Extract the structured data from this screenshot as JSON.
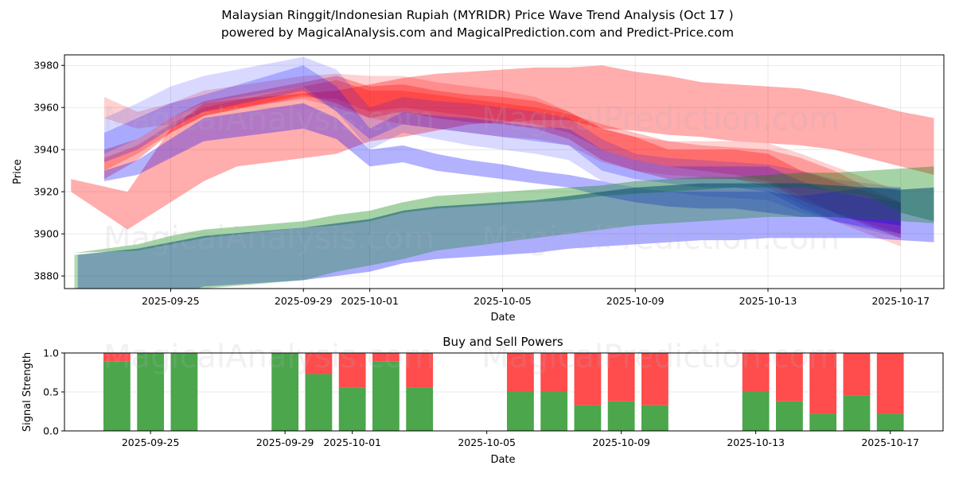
{
  "header": {
    "title": "Malaysian Ringgit/Indonesian Rupiah (MYRIDR) Price Wave Trend Analysis (Oct 17 )",
    "subtitle": "powered by MagicalAnalysis.com and MagicalPrediction.com and Predict-Price.com"
  },
  "watermarks": [
    "MagicalAnalysis.com",
    "MagicalPrediction.com"
  ],
  "colors": {
    "red_band": "#ff0000",
    "blue_band": "#0000ff",
    "green_band": "#008000",
    "buy": "#4ca64c",
    "sell": "#ff4c4c"
  },
  "chart_data": [
    {
      "type": "area",
      "title": "",
      "xlabel": "Date",
      "ylabel": "Price",
      "ylim": [
        3874,
        3985
      ],
      "yticks": [
        3880,
        3900,
        3920,
        3940,
        3960,
        3980
      ],
      "xticks": [
        "2025-09-25",
        "2025-09-29",
        "2025-10-01",
        "2025-10-05",
        "2025-10-09",
        "2025-10-13",
        "2025-10-17"
      ],
      "x_unit": "days since 2025-09-25",
      "xlim": [
        -3.2,
        23.3
      ],
      "grid": true,
      "bands": [
        {
          "name": "red-wide",
          "color": "red",
          "alpha": 0.32,
          "x": [
            -3.0,
            -1.3,
            0,
            1,
            2,
            5,
            6,
            7,
            8,
            9,
            10,
            11,
            12,
            13,
            14,
            15,
            16,
            17,
            18,
            19,
            20,
            21,
            22,
            23
          ],
          "upper": [
            3926,
            3920,
            3950,
            3962,
            3964,
            3968,
            3971,
            3974,
            3976,
            3977,
            3978,
            3979,
            3979,
            3980,
            3977,
            3975,
            3972,
            3971,
            3970,
            3969,
            3966,
            3962,
            3958,
            3955
          ],
          "lower": [
            3920,
            3902,
            3915,
            3925,
            3932,
            3938,
            3944,
            3946,
            3949,
            3952,
            3953,
            3954,
            3954,
            3950,
            3949,
            3947,
            3946,
            3944,
            3943,
            3942,
            3940,
            3936,
            3932,
            3928
          ]
        },
        {
          "name": "red-1",
          "color": "red",
          "alpha": 0.3,
          "x": [
            -2,
            -1,
            0,
            1,
            4,
            5,
            6,
            7,
            8,
            9,
            10,
            11,
            12,
            13,
            14,
            15,
            16,
            17,
            18,
            19,
            20,
            21,
            22
          ],
          "upper": [
            3940,
            3945,
            3955,
            3963,
            3972,
            3975,
            3970,
            3971,
            3968,
            3966,
            3965,
            3963,
            3958,
            3950,
            3946,
            3940,
            3940,
            3940,
            3938,
            3930,
            3925,
            3920,
            3915
          ],
          "lower": [
            3926,
            3935,
            3948,
            3956,
            3966,
            3962,
            3955,
            3958,
            3955,
            3953,
            3952,
            3950,
            3945,
            3935,
            3930,
            3926,
            3926,
            3926,
            3924,
            3916,
            3910,
            3904,
            3898
          ]
        },
        {
          "name": "red-2",
          "color": "red",
          "alpha": 0.25,
          "x": [
            -2,
            -1,
            0,
            1,
            4,
            5,
            6,
            7,
            8,
            9,
            10,
            11,
            12,
            13,
            14,
            15,
            16,
            17,
            18,
            19,
            20,
            21,
            22
          ],
          "upper": [
            3936,
            3942,
            3952,
            3960,
            3970,
            3973,
            3968,
            3968,
            3966,
            3964,
            3962,
            3960,
            3957,
            3952,
            3948,
            3944,
            3942,
            3941,
            3940,
            3936,
            3930,
            3922,
            3915
          ],
          "lower": [
            3930,
            3938,
            3948,
            3956,
            3965,
            3964,
            3958,
            3960,
            3958,
            3956,
            3954,
            3952,
            3948,
            3940,
            3935,
            3932,
            3930,
            3928,
            3925,
            3918,
            3910,
            3905,
            3900
          ]
        },
        {
          "name": "red-3",
          "color": "red",
          "alpha": 0.18,
          "x": [
            -2,
            -1,
            0,
            1,
            4,
            5,
            6,
            7,
            8,
            9,
            10,
            11,
            12,
            13,
            14,
            15,
            16,
            17,
            18,
            19,
            20,
            21,
            22
          ],
          "upper": [
            3965,
            3958,
            3962,
            3968,
            3975,
            3976,
            3975,
            3975,
            3972,
            3970,
            3968,
            3965,
            3958,
            3950,
            3946,
            3944,
            3944,
            3944,
            3943,
            3938,
            3932,
            3926,
            3920
          ],
          "lower": [
            3955,
            3950,
            3952,
            3958,
            3964,
            3960,
            3955,
            3952,
            3950,
            3948,
            3946,
            3945,
            3942,
            3934,
            3930,
            3928,
            3927,
            3926,
            3922,
            3914,
            3906,
            3900,
            3894
          ]
        },
        {
          "name": "blue-1",
          "color": "blue",
          "alpha": 0.15,
          "x": [
            -2,
            -1,
            0,
            1,
            4,
            5,
            6,
            7,
            8,
            9,
            10,
            11,
            12,
            13,
            14,
            15,
            16,
            17,
            18,
            19,
            20,
            21,
            22
          ],
          "upper": [
            3955,
            3962,
            3970,
            3975,
            3984,
            3978,
            3960,
            3965,
            3963,
            3962,
            3960,
            3958,
            3955,
            3945,
            3938,
            3936,
            3935,
            3934,
            3933,
            3930,
            3926,
            3924,
            3922
          ],
          "lower": [
            3938,
            3945,
            3955,
            3962,
            3970,
            3958,
            3940,
            3948,
            3945,
            3942,
            3940,
            3938,
            3935,
            3925,
            3922,
            3920,
            3918,
            3917,
            3916,
            3910,
            3906,
            3902,
            3898
          ]
        },
        {
          "name": "blue-2",
          "color": "blue",
          "alpha": 0.22,
          "x": [
            -2,
            -1,
            0,
            1,
            4,
            5,
            6,
            7,
            8,
            9,
            10,
            11,
            12,
            13,
            14,
            15,
            16,
            17,
            18,
            19,
            20,
            21,
            22
          ],
          "upper": [
            3948,
            3955,
            3962,
            3966,
            3980,
            3970,
            3950,
            3958,
            3956,
            3955,
            3953,
            3951,
            3950,
            3940,
            3935,
            3932,
            3932,
            3932,
            3932,
            3925,
            3920,
            3917,
            3915
          ],
          "lower": [
            3934,
            3940,
            3950,
            3958,
            3968,
            3958,
            3945,
            3952,
            3950,
            3948,
            3946,
            3944,
            3942,
            3930,
            3926,
            3924,
            3922,
            3922,
            3920,
            3912,
            3906,
            3903,
            3900
          ]
        },
        {
          "name": "blue-3",
          "color": "blue",
          "alpha": 0.3,
          "x": [
            -2,
            -1,
            0,
            1,
            4,
            5,
            6,
            7,
            8,
            9,
            10,
            11,
            12,
            13,
            14,
            15,
            16,
            17,
            18,
            19,
            20,
            21,
            22
          ],
          "upper": [
            3930,
            3935,
            3945,
            3955,
            3962,
            3955,
            3940,
            3942,
            3938,
            3935,
            3933,
            3930,
            3928,
            3925,
            3922,
            3920,
            3920,
            3920,
            3920,
            3918,
            3920,
            3922,
            3922
          ],
          "lower": [
            3925,
            3928,
            3936,
            3944,
            3950,
            3945,
            3932,
            3934,
            3930,
            3928,
            3926,
            3924,
            3922,
            3918,
            3915,
            3913,
            3912,
            3912,
            3910,
            3908,
            3908,
            3906,
            3904
          ]
        },
        {
          "name": "green-upper",
          "color": "green",
          "alpha": 0.35,
          "x": [
            -2.9,
            -1,
            0,
            1,
            4,
            5,
            6,
            7,
            8,
            9,
            10,
            11,
            12,
            13,
            14,
            15,
            16,
            17,
            18,
            19,
            20,
            21,
            22,
            23
          ],
          "upper": [
            3891,
            3895,
            3899,
            3902,
            3906,
            3909,
            3911,
            3915,
            3918,
            3919,
            3920,
            3921,
            3922,
            3923,
            3925,
            3926,
            3927,
            3927,
            3928,
            3929,
            3929,
            3930,
            3931,
            3932
          ],
          "lower": [
            3891,
            3892,
            3895,
            3898,
            3903,
            3904,
            3906,
            3910,
            3912,
            3913,
            3914,
            3915,
            3916,
            3918,
            3919,
            3920,
            3921,
            3922,
            3922,
            3922,
            3920,
            3918,
            3910,
            3906
          ]
        },
        {
          "name": "blue-lower",
          "color": "blue",
          "alpha": 0.32,
          "x": [
            -2.8,
            -1,
            0,
            1,
            4,
            5,
            6,
            7,
            8,
            9,
            10,
            11,
            12,
            13,
            14,
            15,
            16,
            17,
            18,
            19,
            20,
            21,
            22,
            23
          ],
          "upper": [
            3890,
            3893,
            3896,
            3899,
            3903,
            3905,
            3907,
            3911,
            3913,
            3914,
            3915,
            3916,
            3918,
            3920,
            3922,
            3923,
            3924,
            3924,
            3924,
            3924,
            3923,
            3922,
            3921,
            3922
          ],
          "lower": [
            3870,
            3868,
            3870,
            3875,
            3878,
            3880,
            3882,
            3886,
            3888,
            3889,
            3890,
            3891,
            3893,
            3894,
            3895,
            3896,
            3897,
            3897,
            3898,
            3898,
            3898,
            3898,
            3897,
            3896
          ]
        },
        {
          "name": "teal-core",
          "color": "green",
          "alpha": 0.3,
          "x": [
            -2.9,
            -1,
            0,
            1,
            4,
            5,
            6,
            7,
            8,
            9,
            10,
            11,
            12,
            13,
            14,
            15,
            16,
            17,
            18,
            19,
            20,
            21,
            22,
            23
          ],
          "upper": [
            3890,
            3893,
            3896,
            3899,
            3903,
            3905,
            3907,
            3911,
            3913,
            3914,
            3915,
            3916,
            3918,
            3920,
            3922,
            3923,
            3924,
            3924,
            3924,
            3924,
            3923,
            3922,
            3921,
            3922
          ],
          "lower": [
            3872,
            3868,
            3870,
            3874,
            3878,
            3882,
            3885,
            3888,
            3892,
            3894,
            3896,
            3898,
            3900,
            3902,
            3904,
            3905,
            3906,
            3907,
            3908,
            3908,
            3908,
            3907,
            3906,
            3905
          ]
        }
      ]
    },
    {
      "type": "bar",
      "title": "Buy and Sell Powers",
      "xlabel": "Date",
      "ylabel": "Signal Strength",
      "ylim": [
        0,
        1
      ],
      "yticks": [
        "0.0",
        "0.5",
        "1.0"
      ],
      "xticks": [
        "2025-09-25",
        "2025-09-29",
        "2025-10-01",
        "2025-10-05",
        "2025-10-09",
        "2025-10-13",
        "2025-10-17"
      ],
      "xlim": [
        -2.56,
        23.57
      ],
      "grid": true,
      "categories": [
        "2025-09-24",
        "2025-09-25",
        "2025-09-26",
        "2025-09-29",
        "2025-09-30",
        "2025-10-01",
        "2025-10-02",
        "2025-10-03",
        "2025-10-06",
        "2025-10-07",
        "2025-10-08",
        "2025-10-09",
        "2025-10-10",
        "2025-10-13",
        "2025-10-14",
        "2025-10-15",
        "2025-10-16",
        "2025-10-17"
      ],
      "day_offsets": [
        -1,
        0,
        1,
        4,
        5,
        6,
        7,
        8,
        11,
        12,
        13,
        14,
        15,
        18,
        19,
        20,
        21,
        22
      ],
      "series": [
        {
          "name": "Buy",
          "values": [
            0.89,
            1.0,
            1.0,
            1.0,
            0.73,
            0.56,
            0.89,
            0.56,
            0.5,
            0.5,
            0.33,
            0.38,
            0.33,
            0.5,
            0.38,
            0.22,
            0.45,
            0.22
          ]
        },
        {
          "name": "Sell",
          "values": [
            0.11,
            0.0,
            0.0,
            0.0,
            0.27,
            0.44,
            0.11,
            0.44,
            0.5,
            0.5,
            0.67,
            0.62,
            0.67,
            0.5,
            0.62,
            0.78,
            0.55,
            0.78
          ]
        }
      ]
    }
  ]
}
